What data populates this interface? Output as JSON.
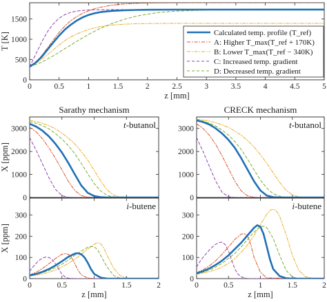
{
  "colors": {
    "calculated": "#1f6fb3",
    "higher": "#d9542b",
    "lower": "#eaae2a",
    "increased": "#8e3fae",
    "decreased": "#77ac30"
  },
  "chart_data": [
    {
      "type": "line",
      "panel": "top",
      "xlabel": "z [mm]",
      "ylabel": "T [K]",
      "xlim": [
        0,
        5
      ],
      "ylim": [
        0,
        1900
      ],
      "xticks": [
        "0",
        "0.5",
        "1",
        "1.5",
        "2",
        "2.5",
        "3",
        "3.5",
        "4",
        "4.5",
        "5"
      ],
      "yticks": [
        "0",
        "500",
        "1000",
        "1500"
      ],
      "legend_position": "bottom-right",
      "series": [
        {
          "name": "Calculated temp. profile (T_ref)",
          "key": "calculated",
          "x": [
            0,
            0.1,
            0.2,
            0.3,
            0.4,
            0.5,
            0.6,
            0.7,
            0.8,
            0.9,
            1.0,
            1.1,
            1.2,
            1.4,
            1.6,
            1.8,
            2.0,
            2.5,
            3,
            4,
            5
          ],
          "y": [
            320,
            420,
            560,
            740,
            920,
            1090,
            1240,
            1360,
            1460,
            1540,
            1600,
            1640,
            1670,
            1700,
            1715,
            1722,
            1727,
            1730,
            1731,
            1732,
            1732
          ]
        },
        {
          "name": "A: Higher T_max(T_ref + 170K)",
          "key": "higher",
          "x": [
            0,
            0.1,
            0.2,
            0.3,
            0.4,
            0.5,
            0.6,
            0.7,
            0.8,
            0.9,
            1.0,
            1.1,
            1.2,
            1.4,
            1.6,
            1.8,
            2.0,
            2.5,
            3,
            4,
            5
          ],
          "y": [
            320,
            430,
            590,
            780,
            980,
            1170,
            1330,
            1460,
            1560,
            1640,
            1700,
            1750,
            1790,
            1840,
            1870,
            1885,
            1893,
            1898,
            1900,
            1902,
            1902
          ]
        },
        {
          "name": "B: Lower T_max(T_ref − 340K)",
          "key": "lower",
          "x": [
            0,
            0.1,
            0.2,
            0.3,
            0.4,
            0.5,
            0.6,
            0.7,
            0.8,
            0.9,
            1.0,
            1.1,
            1.2,
            1.4,
            1.6,
            1.8,
            2.0,
            2.5,
            3,
            4,
            5
          ],
          "y": [
            320,
            400,
            500,
            620,
            740,
            860,
            970,
            1060,
            1130,
            1190,
            1240,
            1280,
            1310,
            1350,
            1370,
            1382,
            1388,
            1392,
            1393,
            1393,
            1393
          ]
        },
        {
          "name": "C: Increased temp. gradient",
          "key": "increased",
          "x": [
            0,
            0.1,
            0.2,
            0.3,
            0.4,
            0.5,
            0.6,
            0.7,
            0.8,
            0.9,
            1.0,
            1.2,
            1.5,
            2,
            3,
            5
          ],
          "y": [
            320,
            620,
            920,
            1180,
            1380,
            1520,
            1610,
            1665,
            1695,
            1712,
            1722,
            1728,
            1731,
            1732,
            1732,
            1732
          ]
        },
        {
          "name": "D: Decreased temp. gradient",
          "key": "decreased",
          "x": [
            0,
            0.2,
            0.4,
            0.6,
            0.8,
            1.0,
            1.2,
            1.4,
            1.6,
            1.8,
            2.0,
            2.2,
            2.5,
            3.0,
            3.5,
            4,
            5
          ],
          "y": [
            320,
            430,
            590,
            770,
            950,
            1120,
            1270,
            1390,
            1490,
            1565,
            1620,
            1660,
            1695,
            1720,
            1728,
            1731,
            1732
          ]
        }
      ]
    },
    {
      "type": "line",
      "panel": "sarathy-tbutanol",
      "title": "Sarathy mechanism",
      "species_label": {
        "prefix": "t",
        "rest": "-butanol"
      },
      "ylabel": "X [ppm]",
      "xlim": [
        0,
        2
      ],
      "ylim": [
        0,
        3500
      ],
      "yticks": [
        "0",
        "1000",
        "2000",
        "3000"
      ],
      "series": [
        {
          "key": "calculated",
          "x": [
            0,
            0.1,
            0.2,
            0.3,
            0.4,
            0.5,
            0.6,
            0.7,
            0.8,
            0.9,
            1.0,
            1.1,
            1.2,
            1.5,
            2
          ],
          "y": [
            3200,
            3080,
            2900,
            2650,
            2330,
            1950,
            1500,
            1000,
            520,
            200,
            60,
            15,
            0,
            0,
            0
          ]
        },
        {
          "key": "higher",
          "x": [
            0,
            0.1,
            0.2,
            0.3,
            0.4,
            0.5,
            0.6,
            0.7,
            0.8,
            0.9,
            1.0,
            1.1,
            1.5,
            2
          ],
          "y": [
            3050,
            2850,
            2550,
            2150,
            1700,
            1200,
            700,
            300,
            80,
            15,
            0,
            0,
            0,
            0
          ]
        },
        {
          "key": "lower",
          "x": [
            0,
            0.1,
            0.2,
            0.3,
            0.4,
            0.5,
            0.6,
            0.7,
            0.8,
            0.9,
            1.0,
            1.1,
            1.2,
            1.3,
            1.4,
            1.5,
            2
          ],
          "y": [
            3350,
            3300,
            3220,
            3120,
            2980,
            2800,
            2580,
            2320,
            2000,
            1620,
            1180,
            720,
            330,
            100,
            20,
            0,
            0
          ]
        },
        {
          "key": "increased",
          "x": [
            0,
            0.1,
            0.2,
            0.3,
            0.4,
            0.5,
            0.6,
            0.7,
            2
          ],
          "y": [
            2600,
            2050,
            1450,
            850,
            350,
            80,
            5,
            0,
            0
          ]
        },
        {
          "key": "decreased",
          "x": [
            0,
            0.1,
            0.2,
            0.3,
            0.4,
            0.5,
            0.6,
            0.7,
            0.8,
            0.9,
            1.0,
            1.1,
            1.2,
            1.3,
            1.5,
            2
          ],
          "y": [
            3300,
            3220,
            3120,
            2980,
            2780,
            2540,
            2250,
            1900,
            1480,
            1030,
            600,
            280,
            90,
            20,
            0,
            0
          ]
        }
      ]
    },
    {
      "type": "line",
      "panel": "creck-tbutanol",
      "title": "CRECK mechanism",
      "species_label": {
        "prefix": "t",
        "rest": "-butanol"
      },
      "xlim": [
        0,
        2
      ],
      "ylim": [
        0,
        3500
      ],
      "yticks": [
        "0",
        "1000",
        "2000",
        "3000"
      ],
      "series": [
        {
          "key": "calculated",
          "x": [
            0,
            0.1,
            0.2,
            0.3,
            0.4,
            0.5,
            0.6,
            0.7,
            0.8,
            0.9,
            1.0,
            1.1,
            1.2,
            1.3,
            1.5,
            2
          ],
          "y": [
            3350,
            3280,
            3170,
            3000,
            2780,
            2500,
            2150,
            1700,
            1200,
            700,
            300,
            80,
            15,
            0,
            0,
            0
          ]
        },
        {
          "key": "higher",
          "x": [
            0,
            0.1,
            0.2,
            0.3,
            0.4,
            0.5,
            0.6,
            0.7,
            0.8,
            0.9,
            1.0,
            1.5,
            2
          ],
          "y": [
            3200,
            3000,
            2700,
            2300,
            1800,
            1250,
            700,
            280,
            70,
            10,
            0,
            0,
            0
          ]
        },
        {
          "key": "lower",
          "x": [
            0,
            0.1,
            0.2,
            0.3,
            0.4,
            0.5,
            0.6,
            0.7,
            0.8,
            0.9,
            1.0,
            1.1,
            1.2,
            1.3,
            1.4,
            1.5,
            1.6,
            1.7,
            2
          ],
          "y": [
            3400,
            3370,
            3320,
            3250,
            3160,
            3040,
            2890,
            2700,
            2470,
            2190,
            1860,
            1480,
            1070,
            660,
            320,
            110,
            25,
            0,
            0
          ]
        },
        {
          "key": "increased",
          "x": [
            0,
            0.1,
            0.2,
            0.3,
            0.4,
            0.5,
            0.6,
            2
          ],
          "y": [
            2600,
            2000,
            1350,
            700,
            220,
            30,
            0,
            0
          ]
        },
        {
          "key": "decreased",
          "x": [
            0,
            0.1,
            0.2,
            0.3,
            0.4,
            0.5,
            0.6,
            0.7,
            0.8,
            0.9,
            1.0,
            1.1,
            1.2,
            1.3,
            1.4,
            1.5,
            2
          ],
          "y": [
            3380,
            3320,
            3230,
            3100,
            2930,
            2710,
            2430,
            2080,
            1660,
            1200,
            760,
            400,
            160,
            50,
            10,
            0,
            0
          ]
        }
      ]
    },
    {
      "type": "line",
      "panel": "sarathy-ibutene",
      "species_label": {
        "prefix": "i",
        "rest": "-butene"
      },
      "xlabel": "z [mm]",
      "ylabel": "X [ppm]",
      "xlim": [
        0,
        2
      ],
      "ylim": [
        0,
        380
      ],
      "xticks": [
        "0",
        "0.5",
        "1",
        "1.5",
        "2"
      ],
      "yticks": [
        "0",
        "100",
        "200",
        "300"
      ],
      "series": [
        {
          "key": "calculated",
          "x": [
            0,
            0.1,
            0.2,
            0.3,
            0.4,
            0.5,
            0.6,
            0.7,
            0.75,
            0.8,
            0.85,
            0.9,
            0.95,
            1.0,
            1.1,
            1.2,
            1.3,
            1.5,
            2
          ],
          "y": [
            15,
            22,
            32,
            45,
            62,
            82,
            103,
            118,
            120,
            115,
            100,
            75,
            45,
            22,
            5,
            0,
            0,
            0,
            0
          ]
        },
        {
          "key": "higher",
          "x": [
            0,
            0.1,
            0.2,
            0.3,
            0.4,
            0.5,
            0.55,
            0.6,
            0.65,
            0.7,
            0.75,
            0.8,
            0.9,
            1.0,
            2
          ],
          "y": [
            18,
            30,
            48,
            70,
            95,
            115,
            118,
            115,
            100,
            70,
            40,
            18,
            3,
            0,
            0
          ]
        },
        {
          "key": "lower",
          "x": [
            0,
            0.1,
            0.2,
            0.3,
            0.4,
            0.5,
            0.6,
            0.7,
            0.8,
            0.9,
            1.0,
            1.05,
            1.1,
            1.15,
            1.2,
            1.3,
            1.4,
            1.5,
            1.6,
            2
          ],
          "y": [
            12,
            16,
            22,
            30,
            40,
            55,
            72,
            92,
            115,
            140,
            162,
            170,
            165,
            145,
            110,
            50,
            15,
            3,
            0,
            0
          ]
        },
        {
          "key": "increased",
          "x": [
            0,
            0.05,
            0.1,
            0.15,
            0.2,
            0.25,
            0.3,
            0.35,
            0.4,
            0.45,
            0.5,
            0.55,
            0.6,
            0.7,
            2
          ],
          "y": [
            35,
            55,
            72,
            87,
            97,
            102,
            100,
            90,
            70,
            45,
            20,
            8,
            2,
            0,
            0
          ]
        },
        {
          "key": "decreased",
          "x": [
            0,
            0.1,
            0.2,
            0.3,
            0.4,
            0.5,
            0.6,
            0.7,
            0.8,
            0.9,
            0.95,
            1.0,
            1.05,
            1.1,
            1.2,
            1.3,
            1.4,
            1.5,
            2
          ],
          "y": [
            14,
            20,
            28,
            38,
            52,
            68,
            88,
            110,
            130,
            148,
            152,
            150,
            138,
            110,
            55,
            15,
            2,
            0,
            0
          ]
        }
      ]
    },
    {
      "type": "line",
      "panel": "creck-ibutene",
      "species_label": {
        "prefix": "i",
        "rest": "-butene"
      },
      "xlabel": "z [mm]",
      "xlim": [
        0,
        2
      ],
      "ylim": [
        0,
        380
      ],
      "xticks": [
        "0",
        "0.5",
        "1",
        "1.5",
        "2"
      ],
      "yticks": [
        "0",
        "100",
        "200",
        "300"
      ],
      "series": [
        {
          "key": "calculated",
          "x": [
            0,
            0.1,
            0.2,
            0.3,
            0.4,
            0.5,
            0.6,
            0.7,
            0.8,
            0.9,
            0.95,
            1.0,
            1.05,
            1.1,
            1.15,
            1.2,
            1.3,
            1.4,
            1.5,
            1.6,
            2
          ],
          "y": [
            25,
            35,
            48,
            65,
            85,
            110,
            140,
            170,
            205,
            240,
            252,
            245,
            210,
            150,
            90,
            45,
            12,
            2,
            0,
            0,
            0
          ]
        },
        {
          "key": "higher",
          "x": [
            0,
            0.1,
            0.2,
            0.3,
            0.4,
            0.5,
            0.6,
            0.7,
            0.75,
            0.8,
            0.85,
            0.9,
            1.0,
            1.1,
            2
          ],
          "y": [
            28,
            42,
            60,
            85,
            115,
            150,
            185,
            210,
            212,
            200,
            160,
            100,
            30,
            3,
            0
          ]
        },
        {
          "key": "lower",
          "x": [
            0,
            0.1,
            0.2,
            0.3,
            0.4,
            0.5,
            0.6,
            0.7,
            0.8,
            0.9,
            1.0,
            1.1,
            1.15,
            1.2,
            1.25,
            1.3,
            1.4,
            1.5,
            1.6,
            1.7,
            1.8,
            2
          ],
          "y": [
            20,
            26,
            33,
            42,
            55,
            72,
            95,
            125,
            160,
            205,
            255,
            305,
            322,
            328,
            320,
            295,
            210,
            110,
            40,
            10,
            2,
            0
          ]
        },
        {
          "key": "increased",
          "x": [
            0,
            0.05,
            0.1,
            0.15,
            0.2,
            0.25,
            0.3,
            0.35,
            0.4,
            0.45,
            0.5,
            0.55,
            0.6,
            0.65,
            0.7,
            0.8,
            2
          ],
          "y": [
            55,
            80,
            100,
            118,
            135,
            150,
            162,
            170,
            172,
            160,
            130,
            85,
            45,
            20,
            8,
            0,
            0
          ]
        },
        {
          "key": "decreased",
          "x": [
            0,
            0.1,
            0.2,
            0.3,
            0.4,
            0.5,
            0.6,
            0.7,
            0.8,
            0.9,
            1.0,
            1.05,
            1.1,
            1.2,
            1.3,
            1.4,
            1.5,
            1.6,
            2
          ],
          "y": [
            22,
            30,
            40,
            55,
            72,
            95,
            120,
            150,
            185,
            220,
            245,
            248,
            240,
            190,
            110,
            40,
            8,
            0,
            0
          ]
        }
      ]
    }
  ]
}
